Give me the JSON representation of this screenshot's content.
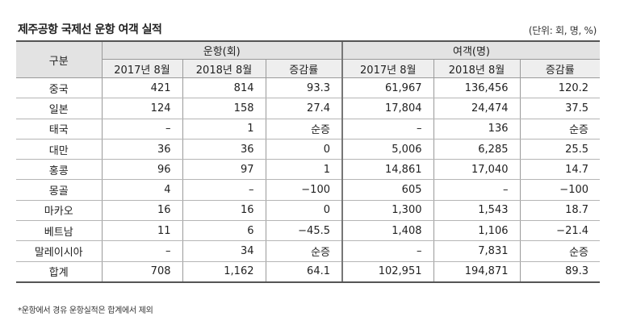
{
  "title": "제주공항 국제선 운항 여객 실적",
  "unit": "(단위: 회, 명, %)",
  "header": {
    "category": "구분",
    "group_flights": "운항(회)",
    "group_passengers": "여객(명)",
    "sub": [
      "2017년 8월",
      "2018년 8월",
      "증감률",
      "2017년 8월",
      "2018년 8월",
      "증감률"
    ]
  },
  "rows": [
    {
      "name": "중국",
      "f2017": "421",
      "f2018": "814",
      "f_rate": "93.3",
      "p2017": "61,967",
      "p2018": "136,456",
      "p_rate": "120.2"
    },
    {
      "name": "일본",
      "f2017": "124",
      "f2018": "158",
      "f_rate": "27.4",
      "p2017": "17,804",
      "p2018": "24,474",
      "p_rate": "37.5"
    },
    {
      "name": "태국",
      "f2017": "–",
      "f2018": "1",
      "f_rate": "순증",
      "p2017": "–",
      "p2018": "136",
      "p_rate": "순증"
    },
    {
      "name": "대만",
      "f2017": "36",
      "f2018": "36",
      "f_rate": "0",
      "p2017": "5,006",
      "p2018": "6,285",
      "p_rate": "25.5"
    },
    {
      "name": "홍콩",
      "f2017": "96",
      "f2018": "97",
      "f_rate": "1",
      "p2017": "14,861",
      "p2018": "17,040",
      "p_rate": "14.7"
    },
    {
      "name": "몽골",
      "f2017": "4",
      "f2018": "–",
      "f_rate": "−100",
      "p2017": "605",
      "p2018": "–",
      "p_rate": "−100"
    },
    {
      "name": "마카오",
      "f2017": "16",
      "f2018": "16",
      "f_rate": "0",
      "p2017": "1,300",
      "p2018": "1,543",
      "p_rate": "18.7"
    },
    {
      "name": "베트남",
      "f2017": "11",
      "f2018": "6",
      "f_rate": "−45.5",
      "p2017": "1,408",
      "p2018": "1,106",
      "p_rate": "−21.4"
    },
    {
      "name": "말레이시아",
      "f2017": "–",
      "f2018": "34",
      "f_rate": "순증",
      "p2017": "–",
      "p2018": "7,831",
      "p_rate": "순증"
    },
    {
      "name": "합계",
      "f2017": "708",
      "f2018": "1,162",
      "f_rate": "64.1",
      "p2017": "102,951",
      "p2018": "194,871",
      "p_rate": "89.3"
    }
  ],
  "footnote": "*운항에서 경유 운항실적은 합계에서 제외"
}
